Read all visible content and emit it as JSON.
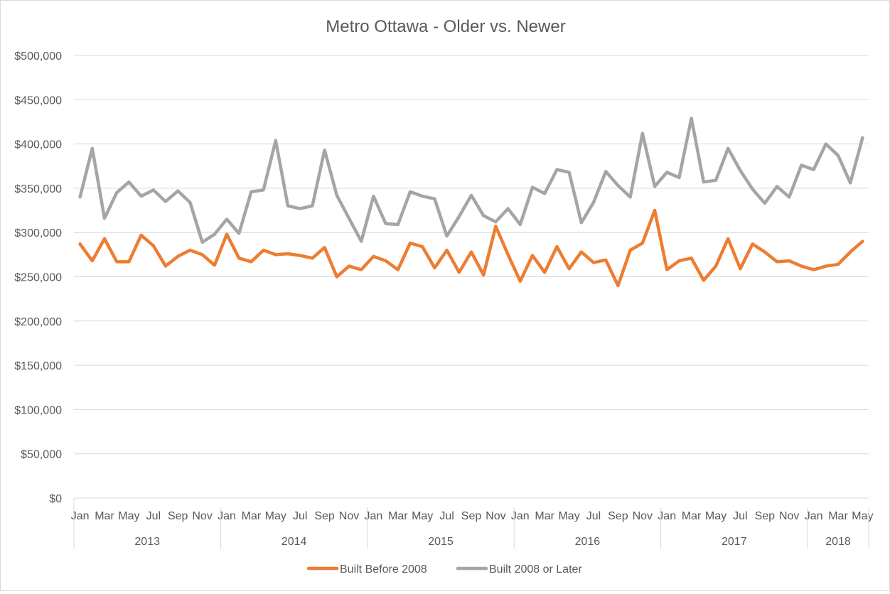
{
  "chart_data": {
    "type": "line",
    "title": "Metro Ottawa - Older vs. Newer",
    "xlabel": "",
    "ylabel": "",
    "ylim": [
      0,
      500000
    ],
    "y_ticks": [
      0,
      50000,
      100000,
      150000,
      200000,
      250000,
      300000,
      350000,
      400000,
      450000,
      500000
    ],
    "y_tick_labels": [
      "$0",
      "$50,000",
      "$100,000",
      "$150,000",
      "$200,000",
      "$250,000",
      "$300,000",
      "$350,000",
      "$400,000",
      "$450,000",
      "$500,000"
    ],
    "grid": true,
    "legend_position": "bottom",
    "month_tick_labels": [
      "Jan",
      "Mar",
      "May",
      "Jul",
      "Sep",
      "Nov",
      "Jan",
      "Mar",
      "May",
      "Jul",
      "Sep",
      "Nov",
      "Jan",
      "Mar",
      "May",
      "Jul",
      "Sep",
      "Nov",
      "Jan",
      "Mar",
      "May",
      "Jul",
      "Sep",
      "Nov",
      "Jan",
      "Mar",
      "May",
      "Jul",
      "Sep",
      "Nov",
      "Jan",
      "Mar",
      "May"
    ],
    "year_groups": [
      {
        "label": "2013",
        "months": 12
      },
      {
        "label": "2014",
        "months": 12
      },
      {
        "label": "2015",
        "months": 12
      },
      {
        "label": "2016",
        "months": 12
      },
      {
        "label": "2017",
        "months": 12
      },
      {
        "label": "2018",
        "months": 5
      }
    ],
    "x": [
      "2013-01",
      "2013-02",
      "2013-03",
      "2013-04",
      "2013-05",
      "2013-06",
      "2013-07",
      "2013-08",
      "2013-09",
      "2013-10",
      "2013-11",
      "2013-12",
      "2014-01",
      "2014-02",
      "2014-03",
      "2014-04",
      "2014-05",
      "2014-06",
      "2014-07",
      "2014-08",
      "2014-09",
      "2014-10",
      "2014-11",
      "2014-12",
      "2015-01",
      "2015-02",
      "2015-03",
      "2015-04",
      "2015-05",
      "2015-06",
      "2015-07",
      "2015-08",
      "2015-09",
      "2015-10",
      "2015-11",
      "2015-12",
      "2016-01",
      "2016-02",
      "2016-03",
      "2016-04",
      "2016-05",
      "2016-06",
      "2016-07",
      "2016-08",
      "2016-09",
      "2016-10",
      "2016-11",
      "2016-12",
      "2017-01",
      "2017-02",
      "2017-03",
      "2017-04",
      "2017-05",
      "2017-06",
      "2017-07",
      "2017-08",
      "2017-09",
      "2017-10",
      "2017-11",
      "2017-12",
      "2018-01",
      "2018-02",
      "2018-03",
      "2018-04",
      "2018-05"
    ],
    "series": [
      {
        "name": "Built Before 2008",
        "color": "#ed7d31",
        "values": [
          287000,
          268000,
          293000,
          267000,
          267000,
          297000,
          285000,
          262000,
          273000,
          280000,
          275000,
          263000,
          298000,
          271000,
          267000,
          280000,
          275000,
          276000,
          274000,
          271000,
          283000,
          250000,
          262000,
          258000,
          273000,
          268000,
          258000,
          288000,
          284000,
          260000,
          280000,
          255000,
          278000,
          252000,
          307000,
          275000,
          245000,
          274000,
          255000,
          284000,
          259000,
          278000,
          266000,
          269000,
          240000,
          280000,
          288000,
          325000,
          258000,
          268000,
          271000,
          246000,
          262000,
          293000,
          259000,
          287000,
          278000,
          267000,
          268000,
          262000,
          258000,
          262000,
          264000,
          278000,
          290000
        ]
      },
      {
        "name": "Built 2008 or Later",
        "color": "#a5a5a5",
        "values": [
          340000,
          395000,
          316000,
          345000,
          357000,
          341000,
          348000,
          335000,
          347000,
          334000,
          289000,
          298000,
          315000,
          299000,
          346000,
          348000,
          404000,
          330000,
          327000,
          330000,
          393000,
          342000,
          316000,
          290000,
          341000,
          310000,
          309000,
          346000,
          341000,
          338000,
          296000,
          318000,
          342000,
          319000,
          312000,
          327000,
          309000,
          351000,
          344000,
          371000,
          368000,
          311000,
          334000,
          369000,
          353000,
          340000,
          412000,
          352000,
          368000,
          362000,
          429000,
          357000,
          359000,
          395000,
          370000,
          349000,
          333000,
          352000,
          340000,
          376000,
          371000,
          400000,
          387000,
          356000,
          407000
        ]
      }
    ]
  }
}
